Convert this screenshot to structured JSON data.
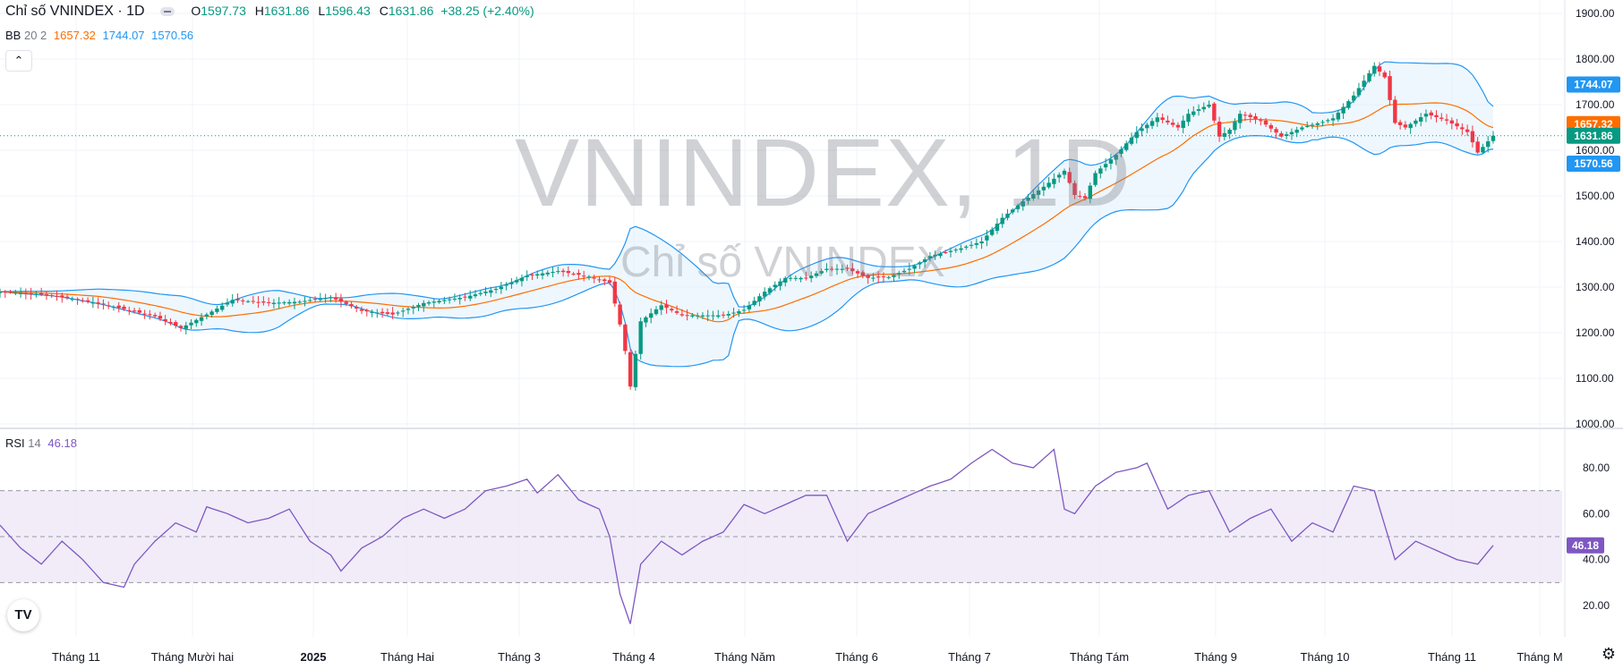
{
  "legend": {
    "symbol": "Chỉ số VNINDEX · 1D",
    "open_label": "O",
    "open": "1597.73",
    "high_label": "H",
    "high": "1631.86",
    "low_label": "L",
    "low": "1596.43",
    "close_label": "C",
    "close": "1631.86",
    "change": "+38.25 (+2.40%)",
    "bb_name": "BB",
    "bb_params": "20 2",
    "bb_basis": "1657.32",
    "bb_upper": "1744.07",
    "bb_lower": "1570.56",
    "collapse_icon": "chevron-up-icon"
  },
  "watermark": {
    "title": "VNINDEX, 1D",
    "subtitle": "Chỉ số VNINDEX"
  },
  "rsi_legend": {
    "name": "RSI",
    "length": "14",
    "value": "46.18"
  },
  "tv_logo": "TV",
  "colors": {
    "up": "#089981",
    "down": "#f23645",
    "bb_basis": "#ff6d00",
    "bb_band": "#2196f3",
    "bb_fill": "#e3f2fd",
    "rsi_line": "#7e57c2",
    "rsi_fill": "#ede7f6"
  },
  "chart_data": [
    {
      "type": "candlestick",
      "title": "Chỉ số VNINDEX · 1D",
      "y_axis": {
        "ticks": [
          "1900.00",
          "1800.00",
          "1700.00",
          "1600.00",
          "1500.00",
          "1400.00",
          "1300.00",
          "1200.00",
          "1100.00",
          "1000.00"
        ],
        "ylim": [
          1000,
          1900
        ]
      },
      "x_axis": {
        "ticks": [
          "Tháng 11",
          "Tháng Mười hai",
          "2025",
          "Tháng Hai",
          "Tháng 3",
          "Tháng 4",
          "Tháng Năm",
          "Tháng 6",
          "Tháng 7",
          "Tháng Tám",
          "Tháng 9",
          "Tháng 10",
          "Tháng 11",
          "Tháng M"
        ]
      },
      "price_labels": [
        {
          "text": "1744.07",
          "value": 1744.07,
          "color": "#2196f3"
        },
        {
          "text": "1657.32",
          "value": 1657.32,
          "color": "#ff6d00"
        },
        {
          "text": "1631.86",
          "value": 1631.86,
          "color": "#089981"
        },
        {
          "text": "1570.56",
          "value": 1570.56,
          "color": "#2196f3"
        }
      ],
      "series": [
        {
          "name": "Chỉ số VNINDEX",
          "close_keypoints": [
            [
              0,
              1290
            ],
            [
              10,
              1282
            ],
            [
              20,
              1262
            ],
            [
              30,
              1236
            ],
            [
              35,
              1210
            ],
            [
              40,
              1240
            ],
            [
              45,
              1272
            ],
            [
              52,
              1265
            ],
            [
              58,
              1268
            ],
            [
              64,
              1278
            ],
            [
              70,
              1248
            ],
            [
              76,
              1240
            ],
            [
              82,
              1265
            ],
            [
              90,
              1278
            ],
            [
              96,
              1296
            ],
            [
              102,
              1325
            ],
            [
              108,
              1335
            ],
            [
              114,
              1323
            ],
            [
              118,
              1310
            ],
            [
              120,
              1218
            ],
            [
              121,
              1160
            ],
            [
              122,
              1082
            ],
            [
              124,
              1225
            ],
            [
              128,
              1260
            ],
            [
              132,
              1238
            ],
            [
              136,
              1238
            ],
            [
              140,
              1238
            ],
            [
              144,
              1250
            ],
            [
              148,
              1290
            ],
            [
              152,
              1320
            ],
            [
              156,
              1320
            ],
            [
              160,
              1340
            ],
            [
              164,
              1340
            ],
            [
              168,
              1320
            ],
            [
              172,
              1322
            ],
            [
              176,
              1340
            ],
            [
              180,
              1368
            ],
            [
              186,
              1385
            ],
            [
              190,
              1400
            ],
            [
              194,
              1452
            ],
            [
              198,
              1488
            ],
            [
              202,
              1520
            ],
            [
              206,
              1555
            ],
            [
              208,
              1502
            ],
            [
              210,
              1495
            ],
            [
              212,
              1550
            ],
            [
              216,
              1590
            ],
            [
              220,
              1640
            ],
            [
              224,
              1672
            ],
            [
              228,
              1650
            ],
            [
              230,
              1680
            ],
            [
              234,
              1700
            ],
            [
              236,
              1630
            ],
            [
              238,
              1645
            ],
            [
              240,
              1680
            ],
            [
              244,
              1665
            ],
            [
              248,
              1630
            ],
            [
              252,
              1650
            ],
            [
              256,
              1662
            ],
            [
              258,
              1670
            ],
            [
              262,
              1720
            ],
            [
              266,
              1785
            ],
            [
              268,
              1760
            ],
            [
              270,
              1660
            ],
            [
              272,
              1650
            ],
            [
              276,
              1680
            ],
            [
              280,
              1665
            ],
            [
              284,
              1640
            ],
            [
              286,
              1595
            ],
            [
              289,
              1631.86
            ]
          ]
        },
        {
          "name": "BB 20 2",
          "upper": "1744.07",
          "basis": "1657.32",
          "lower": "1570.56"
        }
      ]
    },
    {
      "type": "line",
      "title": "RSI 14",
      "y_axis": {
        "ticks": [
          "80.00",
          "60.00",
          "40.00",
          "20.00"
        ],
        "ylim": [
          12,
          92
        ],
        "bands": [
          30,
          70
        ],
        "midline": 50
      },
      "value_label": {
        "text": "46.18",
        "value": 46.18
      },
      "series": [
        {
          "name": "RSI",
          "value_keypoints": [
            [
              0,
              55
            ],
            [
              4,
              45
            ],
            [
              8,
              38
            ],
            [
              12,
              48
            ],
            [
              16,
              40
            ],
            [
              20,
              30
            ],
            [
              24,
              28
            ],
            [
              26,
              38
            ],
            [
              30,
              48
            ],
            [
              34,
              56
            ],
            [
              38,
              52
            ],
            [
              40,
              63
            ],
            [
              44,
              60
            ],
            [
              48,
              56
            ],
            [
              52,
              58
            ],
            [
              56,
              62
            ],
            [
              60,
              48
            ],
            [
              64,
              42
            ],
            [
              66,
              35
            ],
            [
              70,
              45
            ],
            [
              74,
              50
            ],
            [
              78,
              58
            ],
            [
              82,
              62
            ],
            [
              86,
              58
            ],
            [
              90,
              62
            ],
            [
              94,
              70
            ],
            [
              98,
              72
            ],
            [
              102,
              75
            ],
            [
              104,
              69
            ],
            [
              108,
              77
            ],
            [
              112,
              66
            ],
            [
              116,
              62
            ],
            [
              118,
              50
            ],
            [
              120,
              25
            ],
            [
              122,
              12
            ],
            [
              124,
              38
            ],
            [
              128,
              48
            ],
            [
              132,
              42
            ],
            [
              136,
              48
            ],
            [
              140,
              52
            ],
            [
              144,
              64
            ],
            [
              148,
              60
            ],
            [
              152,
              64
            ],
            [
              156,
              68
            ],
            [
              160,
              68
            ],
            [
              164,
              48
            ],
            [
              168,
              60
            ],
            [
              172,
              64
            ],
            [
              176,
              68
            ],
            [
              180,
              72
            ],
            [
              184,
              75
            ],
            [
              188,
              82
            ],
            [
              192,
              88
            ],
            [
              196,
              82
            ],
            [
              200,
              80
            ],
            [
              204,
              88
            ],
            [
              206,
              62
            ],
            [
              208,
              60
            ],
            [
              212,
              72
            ],
            [
              216,
              78
            ],
            [
              220,
              80
            ],
            [
              222,
              82
            ],
            [
              226,
              62
            ],
            [
              230,
              68
            ],
            [
              234,
              70
            ],
            [
              238,
              52
            ],
            [
              242,
              58
            ],
            [
              246,
              62
            ],
            [
              250,
              48
            ],
            [
              254,
              56
            ],
            [
              258,
              52
            ],
            [
              262,
              72
            ],
            [
              266,
              70
            ],
            [
              270,
              40
            ],
            [
              274,
              48
            ],
            [
              278,
              44
            ],
            [
              282,
              40
            ],
            [
              286,
              38
            ],
            [
              289,
              46.18
            ]
          ]
        }
      ]
    }
  ]
}
